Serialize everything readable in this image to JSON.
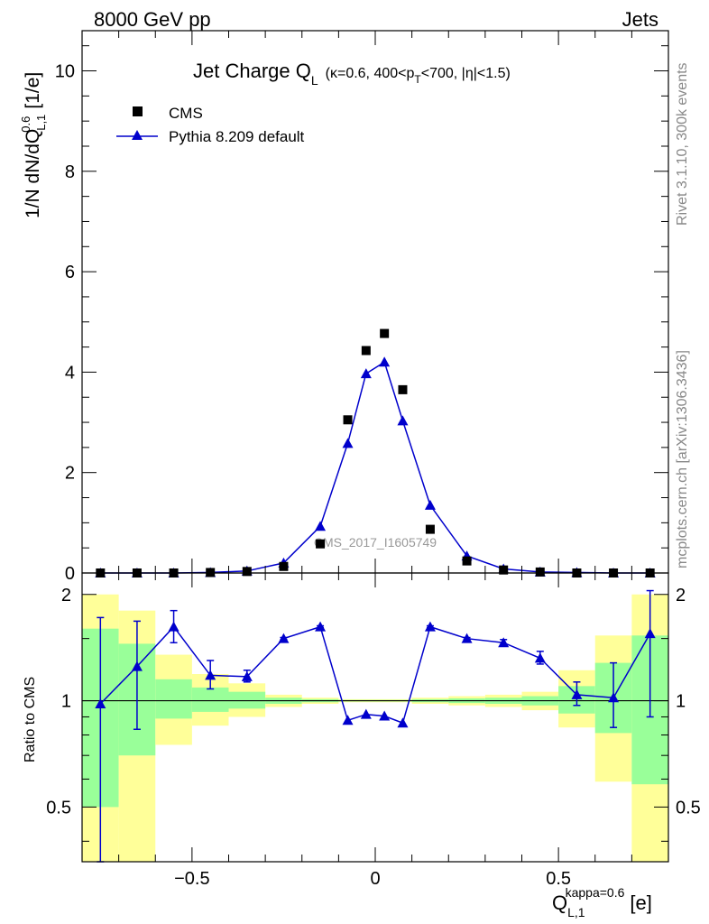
{
  "header": {
    "left": "8000 GeV pp",
    "right": "Jets"
  },
  "side_labels": {
    "rivet": "Rivet 3.1.10,  300k events",
    "mcplots": "mcplots.cern.ch [arXiv:1306.3436]"
  },
  "watermark": "CMS_2017_I1605749",
  "chart_data": [
    {
      "type": "scatter",
      "title": "Jet Charge Q_L (κ=0.6, 400<p_T<700, |η|<1.5)",
      "title_main": "Jet Charge Q",
      "title_sub": "L",
      "title_cond_a": "(κ=0.6, 400<p",
      "title_cond_sub": "T",
      "title_cond_b": "<700, |η|<1.5)",
      "ylabel": "1/N dN/dQ",
      "ylabel_sup": "0.6",
      "ylabel_sub": "L,1",
      "ylabel_unit": "[1/e]",
      "xlim": [
        -0.8,
        0.8
      ],
      "ylim": [
        0,
        10.8
      ],
      "yticks": [
        0,
        2,
        4,
        6,
        8,
        10
      ],
      "ytick_labels": [
        "0",
        "2",
        "4",
        "6",
        "8",
        "10"
      ],
      "legend_position": "top-left",
      "series": [
        {
          "name": "CMS",
          "color": "#000000",
          "marker": "square",
          "x": [
            -0.75,
            -0.65,
            -0.55,
            -0.45,
            -0.35,
            -0.25,
            -0.15,
            -0.075,
            -0.025,
            0.025,
            0.075,
            0.15,
            0.25,
            0.35,
            0.45,
            0.55,
            0.65,
            0.75
          ],
          "y": [
            0.0,
            0.0,
            0.0,
            0.01,
            0.03,
            0.13,
            0.58,
            3.05,
            4.43,
            4.77,
            3.65,
            0.87,
            0.24,
            0.06,
            0.02,
            0.0,
            0.0,
            0.0
          ]
        },
        {
          "name": "Pythia 8.209 default",
          "color": "#0000cc",
          "marker": "triangle",
          "x": [
            -0.75,
            -0.65,
            -0.55,
            -0.45,
            -0.35,
            -0.25,
            -0.15,
            -0.075,
            -0.025,
            0.025,
            0.075,
            0.15,
            0.25,
            0.35,
            0.45,
            0.55,
            0.65,
            0.75
          ],
          "y": [
            0.0,
            0.0,
            0.0,
            0.01,
            0.04,
            0.2,
            0.93,
            2.58,
            3.97,
            4.2,
            3.03,
            1.35,
            0.34,
            0.08,
            0.02,
            0.01,
            0.0,
            0.0
          ]
        }
      ]
    },
    {
      "type": "line",
      "ylabel": "Ratio to CMS",
      "xlabel": "Q",
      "xlabel_sup": "kappa=0.6",
      "xlabel_sub": "L,1",
      "xlabel_unit": "[e]",
      "scale": "log",
      "xlim": [
        -0.8,
        0.8
      ],
      "ylim": [
        0.35,
        2.3
      ],
      "xticks": [
        -0.5,
        0,
        0.5
      ],
      "xtick_labels": [
        "−0.5",
        "0",
        "0.5"
      ],
      "yticks": [
        0.5,
        1,
        2
      ],
      "ytick_labels": [
        "0.5",
        "1",
        "2"
      ],
      "bins": [
        {
          "lo": -0.8,
          "hi": -0.7,
          "y1lo": 0.35,
          "y1hi": 2.0,
          "g1lo": 0.5,
          "g1hi": 1.6
        },
        {
          "lo": -0.7,
          "hi": -0.6,
          "y1lo": 0.35,
          "y1hi": 1.8,
          "g1lo": 0.7,
          "g1hi": 1.45
        },
        {
          "lo": -0.6,
          "hi": -0.5,
          "y1lo": 0.75,
          "y1hi": 1.35,
          "g1lo": 0.89,
          "g1hi": 1.15
        },
        {
          "lo": -0.5,
          "hi": -0.4,
          "y1lo": 0.85,
          "y1hi": 1.19,
          "g1lo": 0.93,
          "g1hi": 1.09
        },
        {
          "lo": -0.4,
          "hi": -0.3,
          "y1lo": 0.9,
          "y1hi": 1.12,
          "g1lo": 0.95,
          "g1hi": 1.06
        },
        {
          "lo": -0.3,
          "hi": -0.2,
          "y1lo": 0.96,
          "y1hi": 1.04,
          "g1lo": 0.98,
          "g1hi": 1.02
        },
        {
          "lo": -0.2,
          "hi": -0.1,
          "y1lo": 0.98,
          "y1hi": 1.02,
          "g1lo": 0.99,
          "g1hi": 1.01
        },
        {
          "lo": -0.1,
          "hi": 0.0,
          "y1lo": 0.99,
          "y1hi": 1.01,
          "g1lo": 0.995,
          "g1hi": 1.005
        },
        {
          "lo": 0.0,
          "hi": 0.1,
          "y1lo": 0.99,
          "y1hi": 1.01,
          "g1lo": 0.995,
          "g1hi": 1.005
        },
        {
          "lo": 0.1,
          "hi": 0.2,
          "y1lo": 0.98,
          "y1hi": 1.02,
          "g1lo": 0.99,
          "g1hi": 1.01
        },
        {
          "lo": 0.2,
          "hi": 0.3,
          "y1lo": 0.97,
          "y1hi": 1.03,
          "g1lo": 0.985,
          "g1hi": 1.015
        },
        {
          "lo": 0.3,
          "hi": 0.4,
          "y1lo": 0.96,
          "y1hi": 1.04,
          "g1lo": 0.98,
          "g1hi": 1.02
        },
        {
          "lo": 0.4,
          "hi": 0.5,
          "y1lo": 0.94,
          "y1hi": 1.06,
          "g1lo": 0.97,
          "g1hi": 1.03
        },
        {
          "lo": 0.5,
          "hi": 0.6,
          "y1lo": 0.84,
          "y1hi": 1.22,
          "g1lo": 0.92,
          "g1hi": 1.1
        },
        {
          "lo": 0.6,
          "hi": 0.7,
          "y1lo": 0.59,
          "y1hi": 1.53,
          "g1lo": 0.81,
          "g1hi": 1.28
        },
        {
          "lo": 0.7,
          "hi": 0.8,
          "y1lo": 0.35,
          "y1hi": 2.0,
          "g1lo": 0.58,
          "g1hi": 1.53
        }
      ],
      "ratio_series": {
        "name": "Pythia 8.209 default",
        "color": "#0000cc",
        "points": [
          {
            "x": -0.75,
            "y": 0.98,
            "lo": 0.35,
            "hi": 1.72
          },
          {
            "x": -0.65,
            "y": 1.25,
            "lo": 0.83,
            "hi": 1.68
          },
          {
            "x": -0.55,
            "y": 1.62,
            "lo": 1.46,
            "hi": 1.8
          },
          {
            "x": -0.45,
            "y": 1.18,
            "lo": 1.08,
            "hi": 1.3
          },
          {
            "x": -0.35,
            "y": 1.17,
            "lo": 1.13,
            "hi": 1.22
          },
          {
            "x": -0.25,
            "y": 1.5,
            "lo": 1.49,
            "hi": 1.51
          },
          {
            "x": -0.15,
            "y": 1.62,
            "lo": 1.61,
            "hi": 1.63
          },
          {
            "x": -0.075,
            "y": 0.88,
            "lo": 0.875,
            "hi": 0.885
          },
          {
            "x": -0.025,
            "y": 0.915,
            "lo": 0.91,
            "hi": 0.92
          },
          {
            "x": 0.025,
            "y": 0.905,
            "lo": 0.9,
            "hi": 0.91
          },
          {
            "x": 0.075,
            "y": 0.865,
            "lo": 0.86,
            "hi": 0.87
          },
          {
            "x": 0.15,
            "y": 1.62,
            "lo": 1.61,
            "hi": 1.63
          },
          {
            "x": 0.25,
            "y": 1.5,
            "lo": 1.49,
            "hi": 1.51
          },
          {
            "x": 0.35,
            "y": 1.46,
            "lo": 1.43,
            "hi": 1.49
          },
          {
            "x": 0.45,
            "y": 1.32,
            "lo": 1.27,
            "hi": 1.38
          },
          {
            "x": 0.55,
            "y": 1.04,
            "lo": 0.97,
            "hi": 1.13
          },
          {
            "x": 0.65,
            "y": 1.02,
            "lo": 0.84,
            "hi": 1.28
          },
          {
            "x": 0.75,
            "y": 1.55,
            "lo": 0.9,
            "hi": 2.05
          }
        ]
      },
      "band_colors": {
        "outer": "#ffff99",
        "inner": "#99ff99"
      }
    }
  ]
}
